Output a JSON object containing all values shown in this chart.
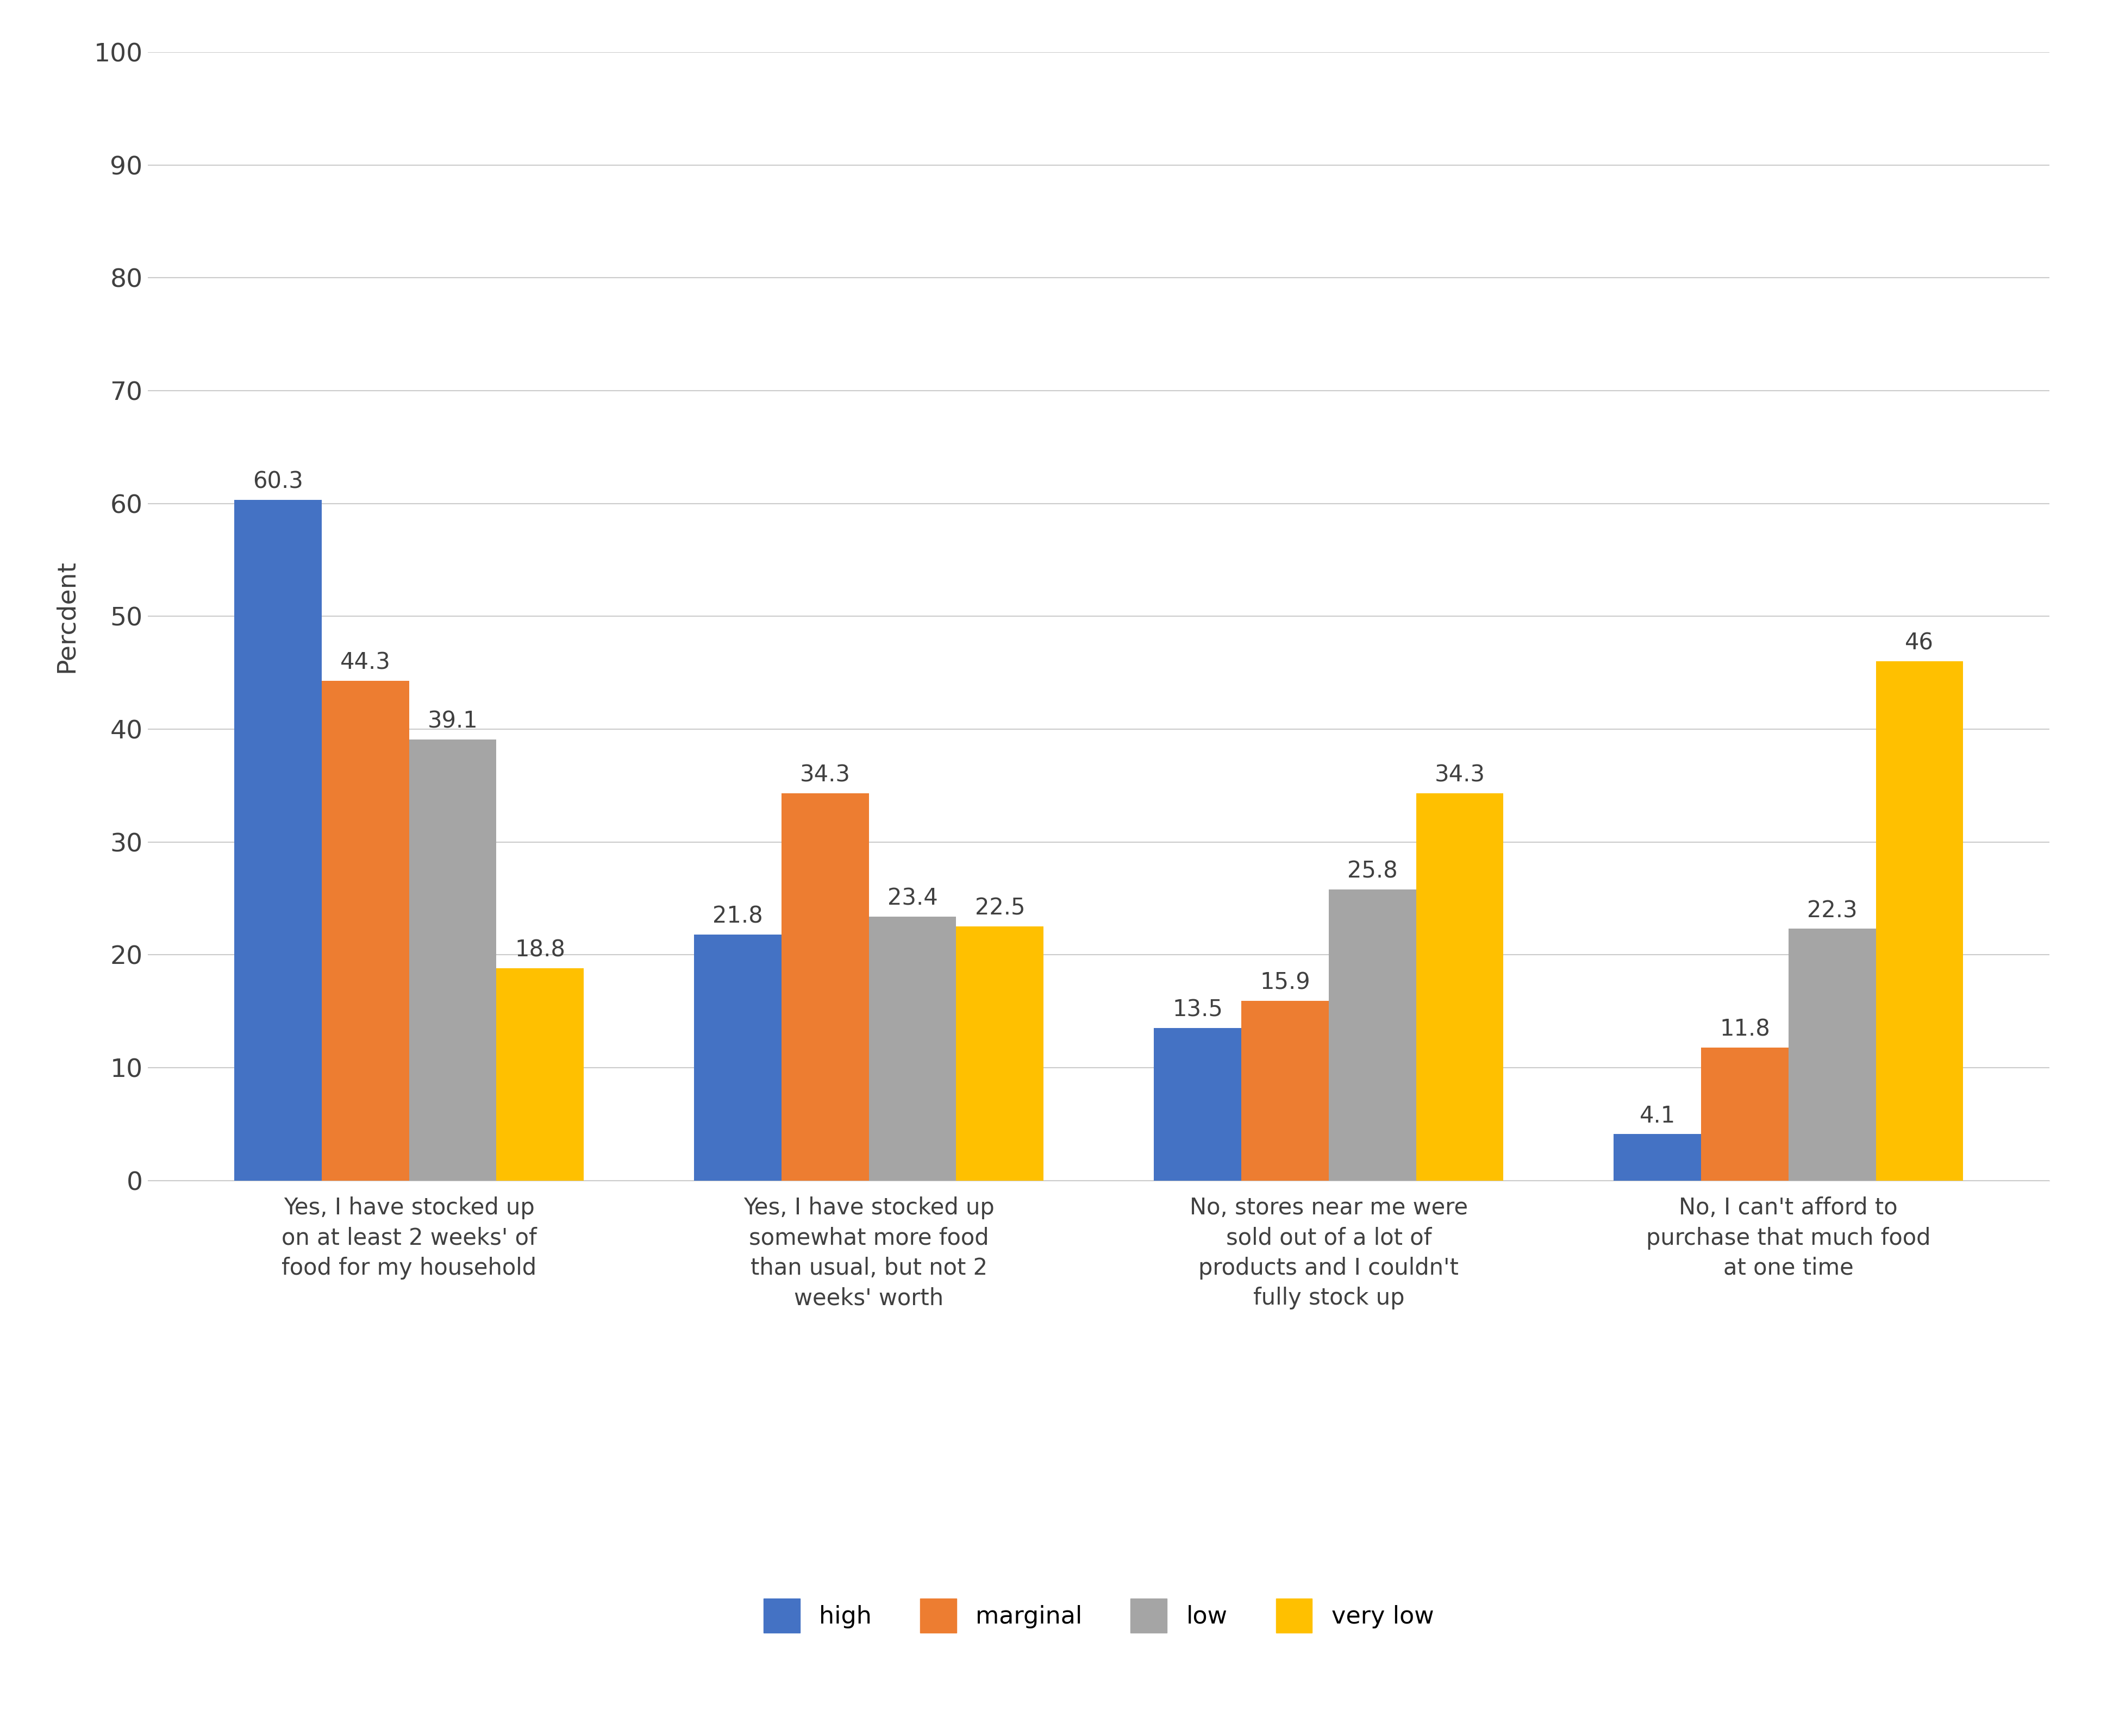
{
  "categories": [
    "Yes, I have stocked up\non at least 2 weeks' of\nfood for my household",
    "Yes, I have stocked up\nsomewhat more food\nthan usual, but not 2\nweeks' worth",
    "No, stores near me were\nsold out of a lot of\nproducts and I couldn't\nfully stock up",
    "No, I can't afford to\npurchase that much food\nat one time"
  ],
  "series": {
    "high": [
      60.3,
      21.8,
      13.5,
      4.1
    ],
    "marginal": [
      44.3,
      34.3,
      15.9,
      11.8
    ],
    "low": [
      39.1,
      23.4,
      25.8,
      22.3
    ],
    "very low": [
      18.8,
      22.5,
      34.3,
      46.0
    ]
  },
  "colors": {
    "high": "#4472C4",
    "marginal": "#ED7D31",
    "low": "#A5A5A5",
    "very low": "#FFC000"
  },
  "legend_labels": [
    "high",
    "marginal",
    "low",
    "very low"
  ],
  "ylabel": "Percdent",
  "ylim": [
    0,
    100
  ],
  "yticks": [
    0,
    10,
    20,
    30,
    40,
    50,
    60,
    70,
    80,
    90,
    100
  ],
  "bar_width": 0.19,
  "label_fontsize": 34,
  "tick_fontsize": 34,
  "legend_fontsize": 32,
  "value_fontsize": 30,
  "xtick_fontsize": 30,
  "background_color": "#FFFFFF",
  "grid_color": "#CCCCCC"
}
